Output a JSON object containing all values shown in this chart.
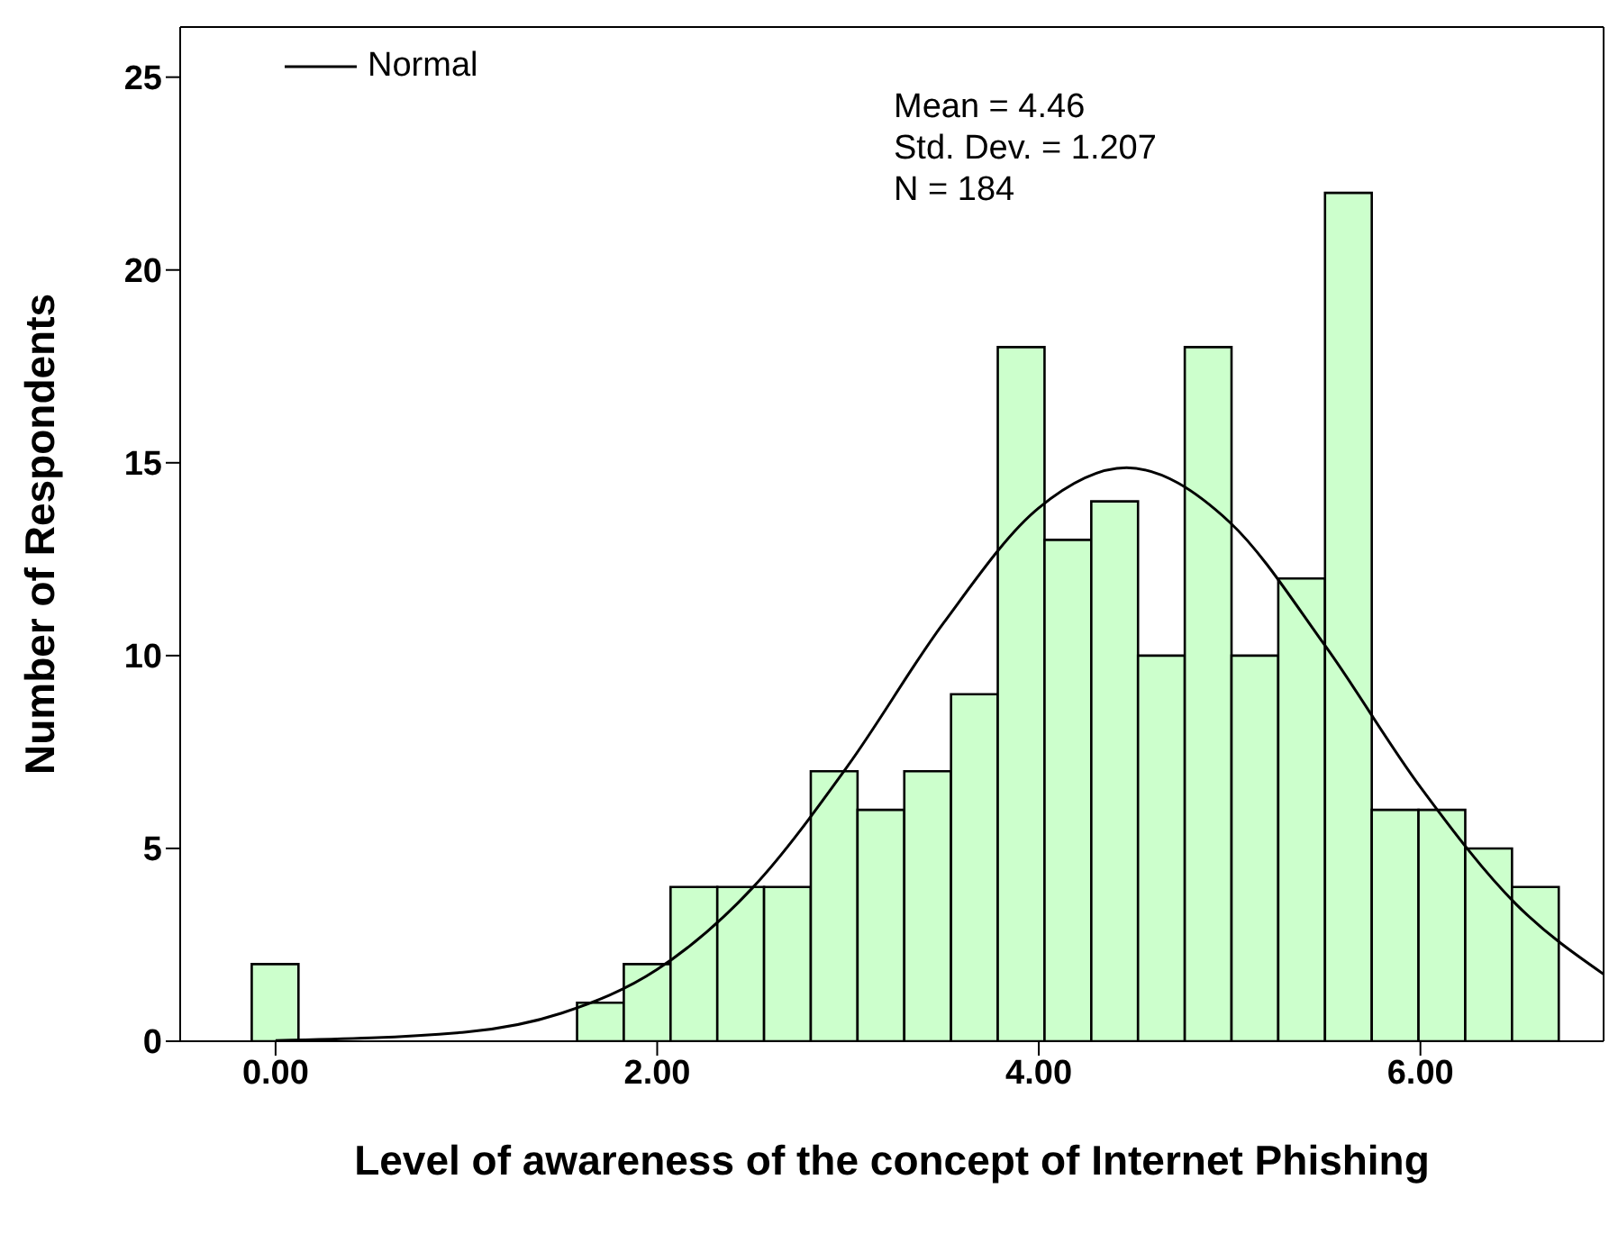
{
  "chart_data": {
    "type": "histogram",
    "xlabel": "Level of awareness of the concept of Internet Phishing",
    "ylabel": "Number of Respondents",
    "bins": [
      -0.125,
      0.12,
      1.58,
      1.825,
      2.07,
      2.315,
      2.56,
      2.805,
      3.05,
      3.295,
      3.54,
      3.785,
      4.03,
      4.275,
      4.52,
      4.765,
      5.01,
      5.255,
      5.5,
      5.745,
      5.99,
      6.235,
      6.48,
      6.725
    ],
    "values": [
      2,
      0,
      1,
      2,
      4,
      4,
      4,
      7,
      6,
      7,
      9,
      18,
      13,
      14,
      10,
      18,
      10,
      12,
      22,
      6,
      6,
      5,
      4
    ],
    "color": "#ccffcc",
    "series": [
      {
        "type": "line",
        "name": "Normal",
        "color": "#000000",
        "x": [
          0,
          1,
          1.5,
          2,
          2.5,
          3,
          3.5,
          4,
          4.46,
          5,
          5.5,
          6,
          6.5,
          6.96
        ],
        "values": [
          0.02,
          0.24,
          0.73,
          1.86,
          3.98,
          7.15,
          10.84,
          13.83,
          14.87,
          13.46,
          10.26,
          6.59,
          3.56,
          1.74
        ]
      }
    ],
    "annotations": [
      "Mean = 4.46",
      "Std. Dev. = 1.207",
      "N = 184"
    ],
    "xlim": [
      -0.5,
      6.96
    ],
    "xticks": [
      {
        "value": 0,
        "label": "0.00"
      },
      {
        "value": 2,
        "label": "2.00"
      },
      {
        "value": 4,
        "label": "4.00"
      },
      {
        "value": 6,
        "label": "6.00"
      }
    ],
    "ylim": [
      0,
      26.3
    ],
    "yticks": [
      0,
      5,
      10,
      15,
      20,
      25
    ],
    "grid": false,
    "legend": "top left",
    "marker": "none",
    "line_style": "solid"
  }
}
